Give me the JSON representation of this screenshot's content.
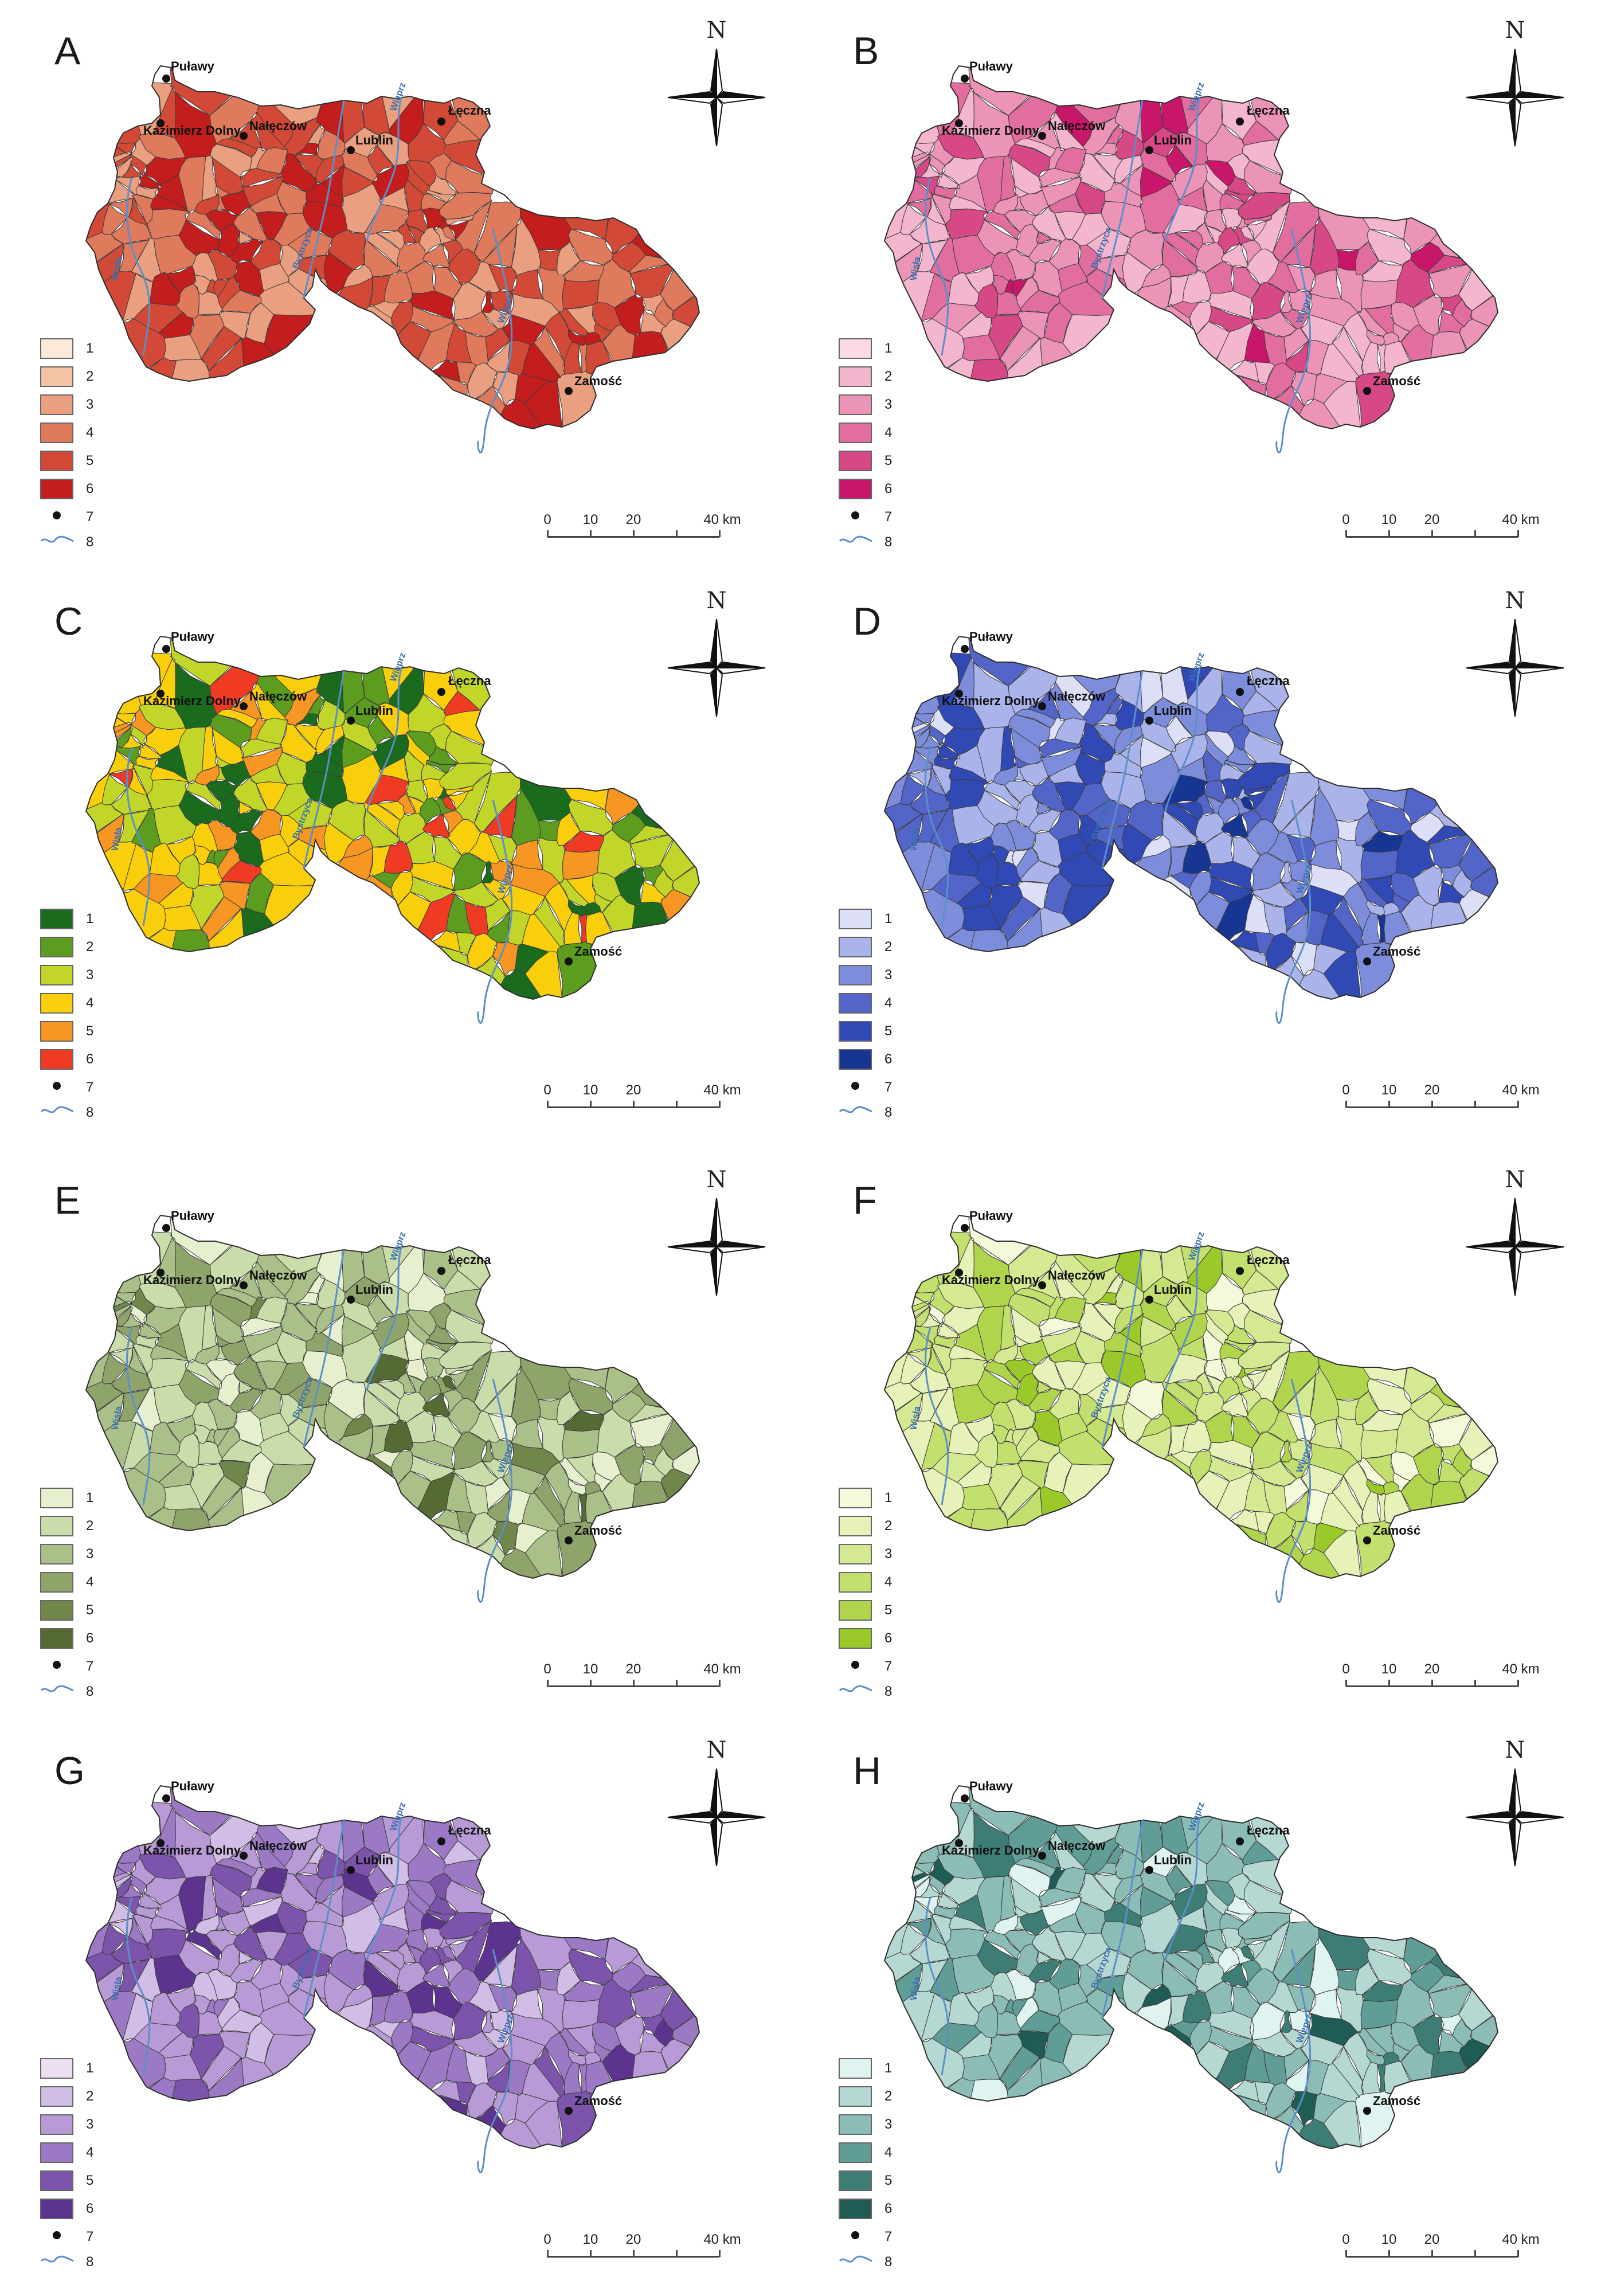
{
  "legend_labels": [
    "1",
    "2",
    "3",
    "4",
    "5",
    "6",
    "7",
    "8"
  ],
  "scale": {
    "ticks": [
      "0",
      "10",
      "20",
      "40 km"
    ]
  },
  "compass_label": "N",
  "cities": [
    {
      "name": "Puławy",
      "lx": 0.305,
      "ly": 0.0
    },
    {
      "name": "Kazimierz Dolny",
      "lx": 0.27,
      "ly": 0.0
    },
    {
      "name": "Nałęczów",
      "lx": 0.45,
      "ly": 0.0
    },
    {
      "name": "Lublin",
      "lx": 0.605,
      "ly": 0.0
    },
    {
      "name": "Łęczna",
      "lx": 0.78,
      "ly": 0.0
    },
    {
      "name": "Zamość",
      "lx": 0.985,
      "ly": 0.0
    }
  ],
  "rivers": [
    "Wisła",
    "Bystrzyca",
    "Wieprz",
    "Wieprz"
  ],
  "colors": {
    "river": "#5b8fc9",
    "border": "#3d3d3d"
  },
  "panels": [
    {
      "letter": "A",
      "palette": [
        "#fde9d9",
        "#f4c2a4",
        "#eaa080",
        "#df7a5c",
        "#d24a37",
        "#c31d1d"
      ],
      "pattern": [
        4,
        5,
        3,
        6,
        4,
        5,
        3,
        4,
        5,
        6,
        3,
        4,
        5,
        4,
        3,
        6,
        5,
        4,
        3,
        5
      ]
    },
    {
      "letter": "B",
      "palette": [
        "#fbd9e7",
        "#f4b6cf",
        "#ec93b8",
        "#e26ea0",
        "#d64886",
        "#c8166a"
      ],
      "pattern": [
        3,
        2,
        4,
        3,
        5,
        2,
        3,
        4,
        3,
        2,
        5,
        4,
        3,
        2,
        4,
        3,
        6,
        2,
        4,
        3
      ]
    },
    {
      "letter": "C",
      "palette": [
        "#1a6b1e",
        "#5c9c1f",
        "#c2d62a",
        "#f9cf0c",
        "#f79623",
        "#ef3a24"
      ],
      "pattern": [
        3,
        4,
        2,
        1,
        3,
        4,
        5,
        6,
        3,
        4,
        2,
        3,
        5,
        6,
        4,
        1,
        2,
        3,
        4,
        5
      ]
    },
    {
      "letter": "D",
      "palette": [
        "#dcdff5",
        "#aab3ea",
        "#7d8ddb",
        "#5365c9",
        "#3149b5",
        "#173593"
      ],
      "pattern": [
        2,
        3,
        4,
        2,
        5,
        3,
        1,
        2,
        4,
        5,
        3,
        2,
        4,
        6,
        3,
        2,
        1,
        4,
        5,
        3
      ]
    },
    {
      "letter": "E",
      "palette": [
        "#e6f0cf",
        "#c9dca9",
        "#aac088",
        "#8ea46a",
        "#70864a",
        "#566a34"
      ],
      "pattern": [
        2,
        3,
        1,
        4,
        2,
        3,
        5,
        2,
        1,
        3,
        4,
        2,
        3,
        6,
        2,
        1,
        3,
        4,
        2,
        3
      ]
    },
    {
      "letter": "F",
      "palette": [
        "#f3f9d9",
        "#e6f2b7",
        "#d5e992",
        "#c3df6e",
        "#b0d44c",
        "#9bc92a"
      ],
      "pattern": [
        3,
        4,
        2,
        5,
        3,
        2,
        4,
        3,
        1,
        2,
        4,
        5,
        3,
        2,
        4,
        6,
        3,
        2,
        4,
        3
      ]
    },
    {
      "letter": "G",
      "palette": [
        "#ecdff3",
        "#d2bde6",
        "#b89bd6",
        "#9c79c4",
        "#7d54ab",
        "#5c348f"
      ],
      "pattern": [
        3,
        4,
        2,
        3,
        5,
        4,
        3,
        2,
        4,
        3,
        5,
        6,
        3,
        4,
        2,
        3,
        4,
        5,
        3,
        2
      ]
    },
    {
      "letter": "H",
      "palette": [
        "#dff3f1",
        "#b5d8d3",
        "#8bbcb6",
        "#5f9d96",
        "#3e7d76",
        "#1f5c55"
      ],
      "pattern": [
        2,
        3,
        4,
        5,
        3,
        2,
        6,
        4,
        3,
        2,
        1,
        3,
        4,
        5,
        2,
        3,
        4,
        2,
        3,
        1
      ]
    }
  ]
}
